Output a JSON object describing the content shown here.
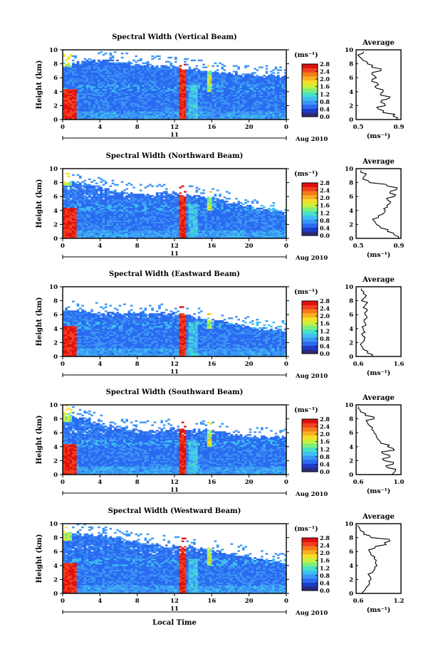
{
  "figure": {
    "xlabel": "Local Time",
    "date_label": "Aug 2010",
    "day_label": "11",
    "avg_title": "Average",
    "ylabel": "Height (km)",
    "cbar_unit": "(ms⁻¹)",
    "avg_xlabel": "(ms⁻¹)"
  },
  "colors": {
    "scale": [
      "#2b2b7a",
      "#1e3cc8",
      "#2a6af0",
      "#3c95f5",
      "#3fc0f0",
      "#47e0c8",
      "#7ef07a",
      "#c8f040",
      "#f5e028",
      "#f8b020",
      "#f57a18",
      "#f04020",
      "#e01010"
    ]
  },
  "chart_data": [
    {
      "type": "heatmap",
      "title": "Spectral Width (Vertical Beam)",
      "x_range": [
        0,
        24
      ],
      "y_range": [
        0,
        10
      ],
      "xticks": [
        "0",
        "4",
        "8",
        "12",
        "16",
        "20",
        "0"
      ],
      "yticks": [
        "0",
        "2",
        "4",
        "6",
        "8",
        "10"
      ],
      "colorbar": {
        "range": [
          0,
          2.8
        ],
        "ticks": [
          "0.0",
          "0.4",
          "0.8",
          "1.2",
          "1.6",
          "2.0",
          "2.4",
          "2.8"
        ]
      },
      "cover": {
        "0": 8.2,
        "4": 8.8,
        "8": 8.2,
        "10": 8.0,
        "14": 7.5,
        "17": 7.0,
        "20": 6.6,
        "24": 6.4
      },
      "avg_profile": {
        "xlim": [
          0.5,
          0.9
        ],
        "xticks": [
          "0.5",
          "0.9"
        ],
        "heights": [
          0,
          0.5,
          1,
          1.5,
          2,
          2.5,
          3,
          3.5,
          4,
          4.5,
          5,
          5.5,
          6,
          6.5,
          7,
          7.5,
          8,
          8.5,
          9,
          9.5
        ],
        "values": [
          0.86,
          0.83,
          0.74,
          0.7,
          0.76,
          0.72,
          0.79,
          0.72,
          0.74,
          0.68,
          0.7,
          0.64,
          0.68,
          0.64,
          0.72,
          0.64,
          0.6,
          0.56,
          0.53,
          0.56
        ]
      }
    },
    {
      "type": "heatmap",
      "title": "Spectral Width (Northward Beam)",
      "x_range": [
        0,
        24
      ],
      "y_range": [
        0,
        10
      ],
      "xticks": [
        "0",
        "4",
        "8",
        "12",
        "16",
        "20",
        "0"
      ],
      "yticks": [
        "0",
        "2",
        "4",
        "6",
        "8",
        "10"
      ],
      "colorbar": {
        "range": [
          0,
          2.8
        ],
        "ticks": [
          "0.0",
          "0.4",
          "0.8",
          "1.2",
          "1.6",
          "2.0",
          "2.4",
          "2.8"
        ]
      },
      "cover": {
        "0": 8.5,
        "4": 7.5,
        "8": 6.5,
        "12": 6.8,
        "16": 6.0,
        "20": 4.8,
        "24": 3.8
      },
      "avg_profile": {
        "xlim": [
          0.5,
          0.9
        ],
        "xticks": [
          "0.5",
          "0.9"
        ],
        "heights": [
          0,
          0.5,
          1,
          1.5,
          2,
          2.5,
          3,
          3.5,
          4,
          4.5,
          5,
          5.5,
          6,
          6.5,
          7,
          7.5,
          8,
          8.5,
          9,
          9.5
        ],
        "values": [
          0.88,
          0.84,
          0.78,
          0.72,
          0.68,
          0.66,
          0.7,
          0.74,
          0.76,
          0.78,
          0.8,
          0.78,
          0.84,
          0.8,
          0.86,
          0.78,
          0.62,
          0.56,
          0.58,
          0.54
        ]
      }
    },
    {
      "type": "heatmap",
      "title": "Spectral Width (Eastward Beam)",
      "x_range": [
        0,
        24
      ],
      "y_range": [
        0,
        10
      ],
      "xticks": [
        "0",
        "4",
        "8",
        "12",
        "16",
        "20",
        "0"
      ],
      "yticks": [
        "0",
        "2",
        "4",
        "6",
        "8",
        "10"
      ],
      "colorbar": {
        "range": [
          0,
          2.8
        ],
        "ticks": [
          "0.0",
          "0.4",
          "0.8",
          "1.2",
          "1.6",
          "2.0",
          "2.4",
          "2.8"
        ]
      },
      "cover": {
        "0": 7.0,
        "4": 6.5,
        "8": 6.5,
        "12": 6.5,
        "16": 5.5,
        "20": 4.5,
        "24": 4.0
      },
      "avg_profile": {
        "xlim": [
          0.6,
          1.6
        ],
        "xticks": [
          "0.6",
          "1.6"
        ],
        "heights": [
          0,
          0.5,
          1,
          1.5,
          2,
          2.5,
          3,
          3.5,
          4,
          4.5,
          5,
          5.5,
          6,
          6.5,
          7,
          7.5,
          8,
          8.5,
          9,
          9.5
        ],
        "values": [
          0.95,
          0.85,
          0.76,
          0.72,
          0.74,
          0.78,
          0.74,
          0.8,
          0.76,
          0.82,
          0.78,
          0.84,
          0.8,
          0.84,
          0.76,
          0.82,
          0.72,
          0.8,
          0.76,
          0.72
        ]
      }
    },
    {
      "type": "heatmap",
      "title": "Spectral Width (Southward Beam)",
      "x_range": [
        0,
        24
      ],
      "y_range": [
        0,
        10
      ],
      "xticks": [
        "0",
        "4",
        "8",
        "12",
        "16",
        "20",
        "0"
      ],
      "yticks": [
        "0",
        "2",
        "4",
        "6",
        "8",
        "10"
      ],
      "colorbar": {
        "range": [
          0,
          2.8
        ],
        "ticks": [
          "0.0",
          "0.4",
          "0.8",
          "1.2",
          "1.6",
          "2.0",
          "2.4",
          "2.8"
        ]
      },
      "cover": {
        "0": 9.0,
        "4": 7.5,
        "8": 6.5,
        "12": 6.8,
        "16": 6.5,
        "20": 5.8,
        "24": 5.5
      },
      "avg_profile": {
        "xlim": [
          0.6,
          1.0
        ],
        "xticks": [
          "0.6",
          "1.0"
        ],
        "heights": [
          0,
          0.5,
          1,
          1.5,
          2,
          2.5,
          3,
          3.5,
          4,
          4.5,
          5,
          5.5,
          6,
          6.5,
          7,
          7.5,
          8,
          8.5,
          9,
          9.5
        ],
        "values": [
          0.92,
          0.95,
          0.88,
          0.93,
          0.85,
          0.9,
          0.84,
          0.94,
          0.88,
          0.82,
          0.8,
          0.78,
          0.76,
          0.74,
          0.72,
          0.7,
          0.76,
          0.68,
          0.64,
          0.62
        ]
      }
    },
    {
      "type": "heatmap",
      "title": "Spectral Width (Westward Beam)",
      "x_range": [
        0,
        24
      ],
      "y_range": [
        0,
        10
      ],
      "xticks": [
        "0",
        "4",
        "8",
        "12",
        "16",
        "20",
        "0"
      ],
      "yticks": [
        "0",
        "2",
        "4",
        "6",
        "8",
        "10"
      ],
      "colorbar": {
        "range": [
          0,
          2.8
        ],
        "ticks": [
          "0.0",
          "0.4",
          "0.8",
          "1.2",
          "1.6",
          "2.0",
          "2.4",
          "2.8"
        ]
      },
      "cover": {
        "0": 9.0,
        "4": 8.5,
        "8": 7.5,
        "12": 7.0,
        "16": 6.5,
        "20": 5.5,
        "24": 4.5
      },
      "avg_profile": {
        "xlim": [
          0.6,
          1.2
        ],
        "xticks": [
          "0.6",
          "1.2"
        ],
        "heights": [
          0,
          0.5,
          1,
          1.5,
          2,
          2.5,
          3,
          3.5,
          4,
          4.5,
          5,
          5.5,
          6,
          6.5,
          7,
          7.5,
          8,
          8.5,
          9,
          9.5
        ],
        "values": [
          0.68,
          0.72,
          0.75,
          0.78,
          0.8,
          0.78,
          0.82,
          0.85,
          0.88,
          0.86,
          0.84,
          0.8,
          0.78,
          0.85,
          1.0,
          1.05,
          0.8,
          0.7,
          0.66,
          0.64
        ]
      }
    }
  ]
}
